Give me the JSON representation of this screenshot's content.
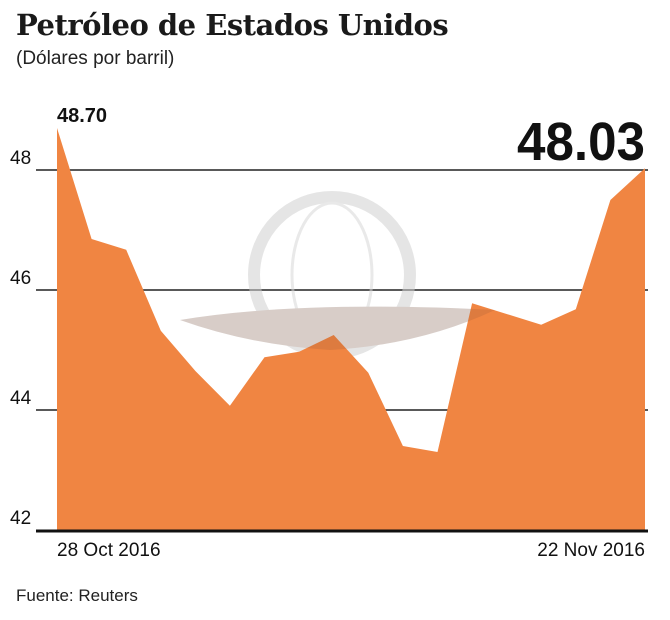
{
  "chart_data": {
    "type": "area",
    "title": "Petróleo de Estados Unidos",
    "subtitle": "(Dólares por barril)",
    "source": "Fuente: Reuters",
    "x": [
      "2016-10-28",
      "2016-10-31",
      "2016-11-01",
      "2016-11-02",
      "2016-11-03",
      "2016-11-04",
      "2016-11-07",
      "2016-11-08",
      "2016-11-09",
      "2016-11-10",
      "2016-11-11",
      "2016-11-14",
      "2016-11-15",
      "2016-11-16",
      "2016-11-17",
      "2016-11-18",
      "2016-11-21",
      "2016-11-22"
    ],
    "values": [
      48.7,
      46.85,
      46.67,
      45.32,
      44.65,
      44.07,
      44.88,
      44.97,
      45.25,
      44.62,
      43.4,
      43.3,
      45.78,
      45.6,
      45.42,
      45.68,
      47.5,
      48.03
    ],
    "x_tick_labels": [
      "28 Oct 2016",
      "22 Nov 2016"
    ],
    "y_ticks": [
      42,
      44,
      46,
      48
    ],
    "ylim": [
      42,
      49.4
    ],
    "grid": "horizontal",
    "annotations": {
      "start": "48.70",
      "end": "48.03"
    },
    "colors": {
      "area": "#f08542",
      "grid": "#222222",
      "watermark": "#d0d0d0"
    }
  }
}
